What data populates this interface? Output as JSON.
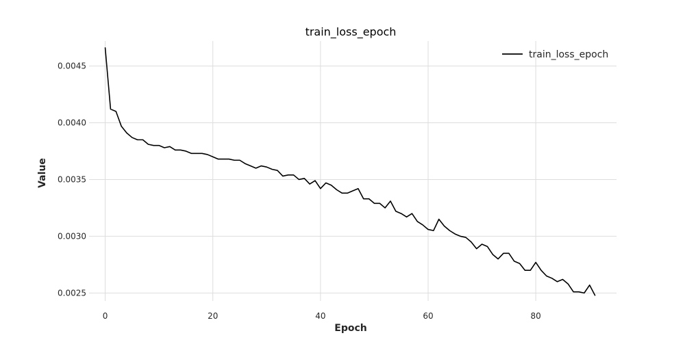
{
  "chart_data": {
    "type": "line",
    "title": "train_loss_epoch",
    "xlabel": "Epoch",
    "ylabel": "Value",
    "xlim": [
      -3,
      95
    ],
    "ylim": [
      0.00243,
      0.00472
    ],
    "xticks": [
      0,
      20,
      40,
      60,
      80
    ],
    "yticks": [
      0.0025,
      0.003,
      0.0035,
      0.004,
      0.0045
    ],
    "ytick_labels": [
      "0.0025",
      "0.0030",
      "0.0035",
      "0.0040",
      "0.0045"
    ],
    "xtick_labels": [
      "0",
      "20",
      "40",
      "60",
      "80"
    ],
    "grid": true,
    "legend_position": "top-right",
    "series": [
      {
        "name": "train_loss_epoch",
        "color": "#000000",
        "x": [
          0,
          1,
          2,
          3,
          4,
          5,
          6,
          7,
          8,
          9,
          10,
          11,
          12,
          13,
          14,
          15,
          16,
          17,
          18,
          19,
          20,
          21,
          22,
          23,
          24,
          25,
          26,
          27,
          28,
          29,
          30,
          31,
          32,
          33,
          34,
          35,
          36,
          37,
          38,
          39,
          40,
          41,
          42,
          43,
          44,
          45,
          46,
          47,
          48,
          49,
          50,
          51,
          52,
          53,
          54,
          55,
          56,
          57,
          58,
          59,
          60,
          61,
          62,
          63,
          64,
          65,
          66,
          67,
          68,
          69,
          70,
          71,
          72,
          73,
          74,
          75,
          76,
          77,
          78,
          79,
          80,
          81,
          82,
          83,
          84,
          85,
          86,
          87,
          88,
          89,
          90,
          91
        ],
        "values": [
          0.00466,
          0.00412,
          0.0041,
          0.00397,
          0.00391,
          0.00387,
          0.00385,
          0.00385,
          0.00381,
          0.0038,
          0.0038,
          0.00378,
          0.00379,
          0.00376,
          0.00376,
          0.00375,
          0.00373,
          0.00373,
          0.00373,
          0.00372,
          0.0037,
          0.00368,
          0.00368,
          0.00368,
          0.00367,
          0.00367,
          0.00364,
          0.00362,
          0.0036,
          0.00362,
          0.00361,
          0.00359,
          0.00358,
          0.00353,
          0.00354,
          0.00354,
          0.0035,
          0.00351,
          0.00346,
          0.00349,
          0.00342,
          0.00347,
          0.00345,
          0.00341,
          0.00338,
          0.00338,
          0.0034,
          0.00342,
          0.00333,
          0.00333,
          0.00329,
          0.00329,
          0.00325,
          0.00331,
          0.00322,
          0.0032,
          0.00317,
          0.0032,
          0.00313,
          0.0031,
          0.00306,
          0.00305,
          0.00315,
          0.00309,
          0.00305,
          0.00302,
          0.003,
          0.00299,
          0.00295,
          0.00289,
          0.00293,
          0.00291,
          0.00284,
          0.0028,
          0.00285,
          0.00285,
          0.00278,
          0.00276,
          0.0027,
          0.0027,
          0.00277,
          0.0027,
          0.00265,
          0.00263,
          0.0026,
          0.00262,
          0.00258,
          0.00251,
          0.00251,
          0.0025,
          0.00257,
          0.00248
        ]
      }
    ]
  }
}
